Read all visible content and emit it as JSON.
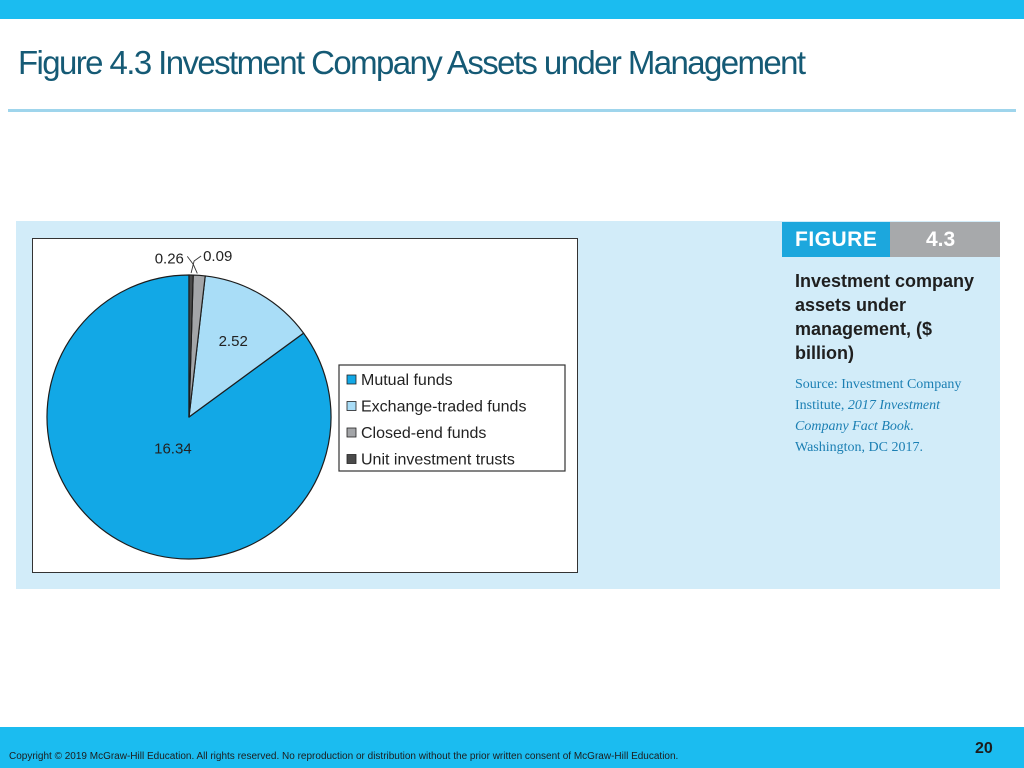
{
  "slide": {
    "title": "Figure 4.3 Investment Company Assets under Management",
    "page_number": "20",
    "copyright": "Copyright © 2019 McGraw-Hill Education. All rights reserved. No reproduction or distribution without the prior written consent of McGraw-Hill Education."
  },
  "figure": {
    "tag_word": "FIGURE",
    "tag_number": "4.3",
    "caption": "Investment company assets under management, ($ billion)",
    "source_prefix": "Source: Investment Company Institute, ",
    "source_title": "2017 Investment Company Fact Book",
    "source_suffix": ". Washington, DC 2017."
  },
  "colors": {
    "accent_bar": "#1bbcf0",
    "title_text": "#155a75",
    "panel_bg": "#d2ecf9",
    "figure_tag": "#1ca7dd",
    "figure_number_tag": "#a7a9ab",
    "source_text": "#1b7fb3"
  },
  "chart_data": {
    "type": "pie",
    "title": "",
    "categories": [
      "Mutual funds",
      "Exchange-traded funds",
      "Closed-end funds",
      "Unit investment trusts"
    ],
    "values": [
      16.34,
      2.52,
      0.26,
      0.09
    ],
    "value_labels": [
      "16.34",
      "2.52",
      "0.26",
      "0.09"
    ],
    "colors": [
      "#12a8e6",
      "#a9ddf7",
      "#a3a5a8",
      "#4a4a4a"
    ],
    "legend": {
      "position": "right",
      "entries": [
        "Mutual funds",
        "Exchange-traded funds",
        "Closed-end funds",
        "Unit investment trusts"
      ]
    }
  }
}
